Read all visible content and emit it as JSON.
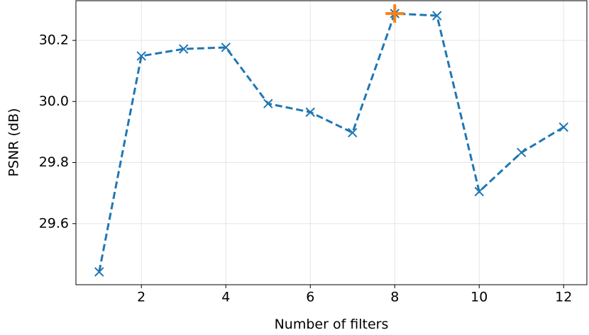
{
  "chart_data": {
    "type": "line",
    "xlabel": "Number of filters",
    "ylabel": "PSNR (dB)",
    "x": [
      1,
      2,
      3,
      4,
      5,
      6,
      7,
      8,
      9,
      10,
      11,
      12
    ],
    "series": [
      {
        "color": "#1f77b4",
        "values": [
          29.442,
          30.149,
          30.172,
          30.177,
          29.993,
          29.965,
          29.898,
          30.288,
          30.281,
          29.705,
          29.833,
          29.916
        ]
      }
    ],
    "highlight": {
      "series": 0,
      "index": 7,
      "color": "#ff7f0e"
    },
    "xlim": [
      0.45,
      12.55
    ],
    "xticks": [
      2,
      4,
      6,
      8,
      10,
      12
    ],
    "ylim": [
      29.4,
      30.33
    ],
    "yticks": [
      29.6,
      29.8,
      {
        "value": 30,
        "label": "30.0"
      },
      30.2
    ],
    "grid": true
  }
}
